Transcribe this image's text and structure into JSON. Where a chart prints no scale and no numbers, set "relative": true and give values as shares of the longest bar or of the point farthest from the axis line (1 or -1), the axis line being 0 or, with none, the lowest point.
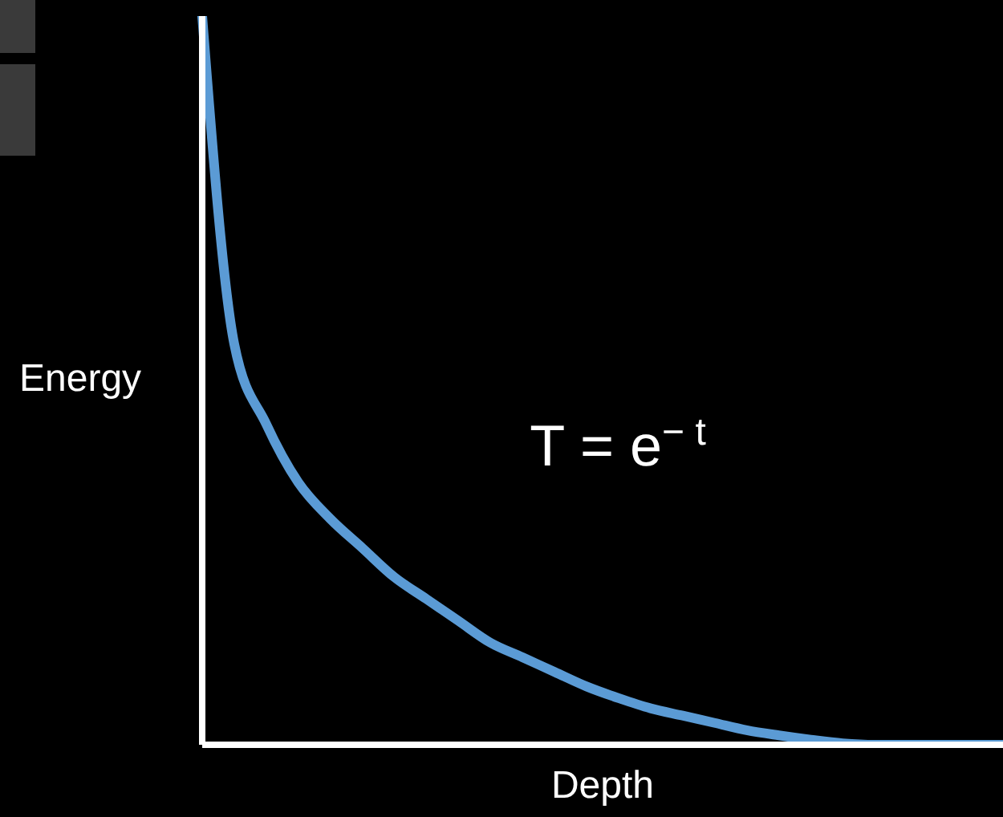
{
  "chart_data": {
    "type": "line",
    "relative": true,
    "xlabel": "Depth",
    "ylabel": "Energy",
    "annotations": [
      "T = e$^{− t}$"
    ],
    "categories": [
      null,
      null,
      null,
      null,
      null,
      null,
      null,
      null,
      null,
      null,
      null,
      null,
      null,
      null,
      null,
      null,
      null,
      null,
      null,
      null,
      null,
      null,
      null,
      null,
      null,
      null
    ],
    "series": [
      {
        "color": "#5b9bd5",
        "values": [
          1,
          0.55,
          0.44,
          0.36,
          0.31,
          0.27,
          0.23,
          0.2,
          0.17,
          0.14,
          0.12,
          0.1,
          0.08,
          0.064,
          0.05,
          0.04,
          0.03,
          0.02,
          0.013,
          0.007,
          0.002,
          0,
          0,
          0,
          0,
          0
        ]
      }
    ],
    "grid": false,
    "legend": false,
    "marker": "none",
    "line_style": "solid"
  }
}
